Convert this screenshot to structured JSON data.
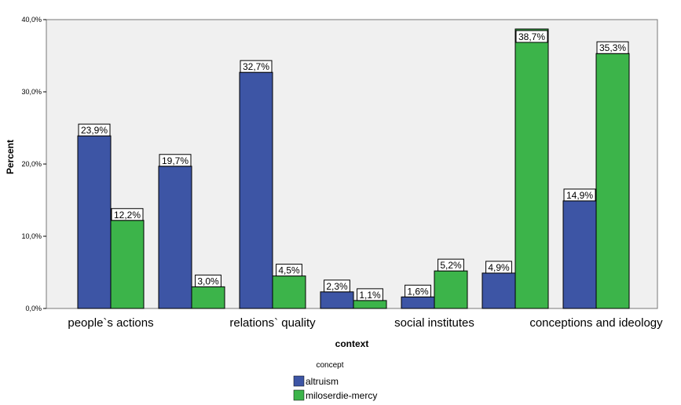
{
  "chart_data": {
    "type": "bar",
    "title": "",
    "xlabel": "context",
    "ylabel": "Percent",
    "ylim": [
      0,
      40
    ],
    "yticks": [
      "0,0%",
      "10,0%",
      "20,0%",
      "30,0%",
      "40,0%"
    ],
    "grid": false,
    "legend_placement": "bottom-center",
    "legend_title": "concept",
    "groups": [
      {
        "values": [
          23.9,
          12.2
        ],
        "labels": [
          "23,9%",
          "12,2%"
        ]
      },
      {
        "values": [
          19.7,
          3.0
        ],
        "labels": [
          "19,7%",
          "3,0%"
        ]
      },
      {
        "values": [
          32.7,
          4.5
        ],
        "labels": [
          "32,7%",
          "4,5%"
        ]
      },
      {
        "values": [
          2.3,
          1.1
        ],
        "labels": [
          "2,3%",
          "1,1%"
        ]
      },
      {
        "values": [
          1.6,
          5.2
        ],
        "labels": [
          "1,6%",
          "5,2%"
        ]
      },
      {
        "values": [
          4.9,
          38.7
        ],
        "labels": [
          "4,9%",
          "38,7%"
        ]
      },
      {
        "values": [
          14.9,
          35.3
        ],
        "labels": [
          "14,9%",
          "35,3%"
        ]
      }
    ],
    "shown_category_labels": [
      {
        "group": 0,
        "label": "people`s actions"
      },
      {
        "group": 2,
        "label": "relations` quality"
      },
      {
        "group": 4,
        "label": "social institutes"
      },
      {
        "group": 6,
        "label": "conceptions and ideology"
      }
    ],
    "series": [
      {
        "name": "altruism",
        "color": "#3d55a5"
      },
      {
        "name": "miloserdie-mercy",
        "color": "#3cb44a"
      }
    ],
    "plot_background": "#f0f0f0"
  }
}
